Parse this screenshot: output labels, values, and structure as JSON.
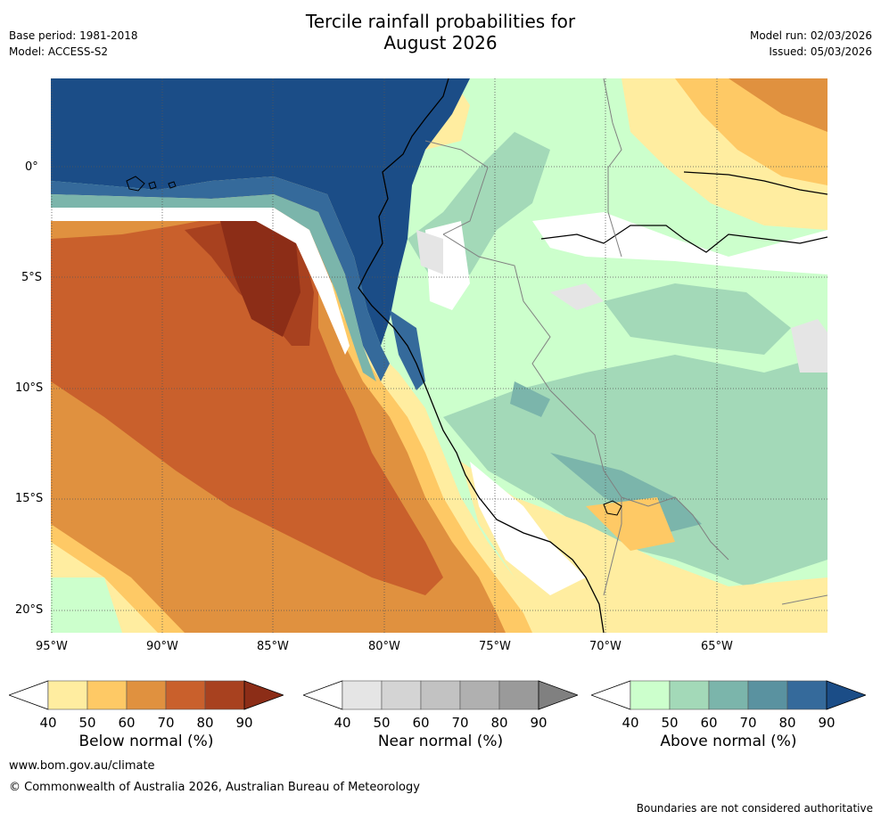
{
  "title": {
    "line1": "Tercile rainfall probabilities for",
    "line2": "August 2026"
  },
  "header_left": {
    "base_period": "Base period: 1981-2018",
    "model": "Model: ACCESS-S2"
  },
  "header_right": {
    "model_run": "Model run: 02/03/2026",
    "issued": "Issued: 05/03/2026"
  },
  "map": {
    "lat_labels": [
      "0°",
      "5°S",
      "10°S",
      "15°S",
      "20°S"
    ],
    "lon_labels": [
      "95°W",
      "90°W",
      "85°W",
      "80°W",
      "75°W",
      "70°W",
      "65°W"
    ]
  },
  "colorbars": [
    {
      "name": "below",
      "title": "Below normal (%)",
      "ticks": [
        "40",
        "50",
        "60",
        "70",
        "80",
        "90"
      ],
      "colors": [
        "#ffeda0",
        "#fec965",
        "#e0913f",
        "#c9602c",
        "#a8411f",
        "#8c2d17"
      ]
    },
    {
      "name": "near",
      "title": "Near normal (%)",
      "ticks": [
        "40",
        "50",
        "60",
        "70",
        "80",
        "90"
      ],
      "colors": [
        "#e5e5e5",
        "#d4d4d4",
        "#c2c2c2",
        "#b0b0b0",
        "#9a9a9a",
        "#808080"
      ]
    },
    {
      "name": "above",
      "title": "Above normal (%)",
      "ticks": [
        "40",
        "50",
        "60",
        "70",
        "80",
        "90"
      ],
      "colors": [
        "#ccffcc",
        "#a3d9b8",
        "#7bb5ab",
        "#5a92a0",
        "#356a9b",
        "#1b4d87"
      ]
    }
  ],
  "footer": {
    "website": "www.bom.gov.au/climate",
    "copyright": "© Commonwealth of Australia 2026, Australian Bureau of Meteorology",
    "disclaimer": "Boundaries are not considered authoritative"
  }
}
